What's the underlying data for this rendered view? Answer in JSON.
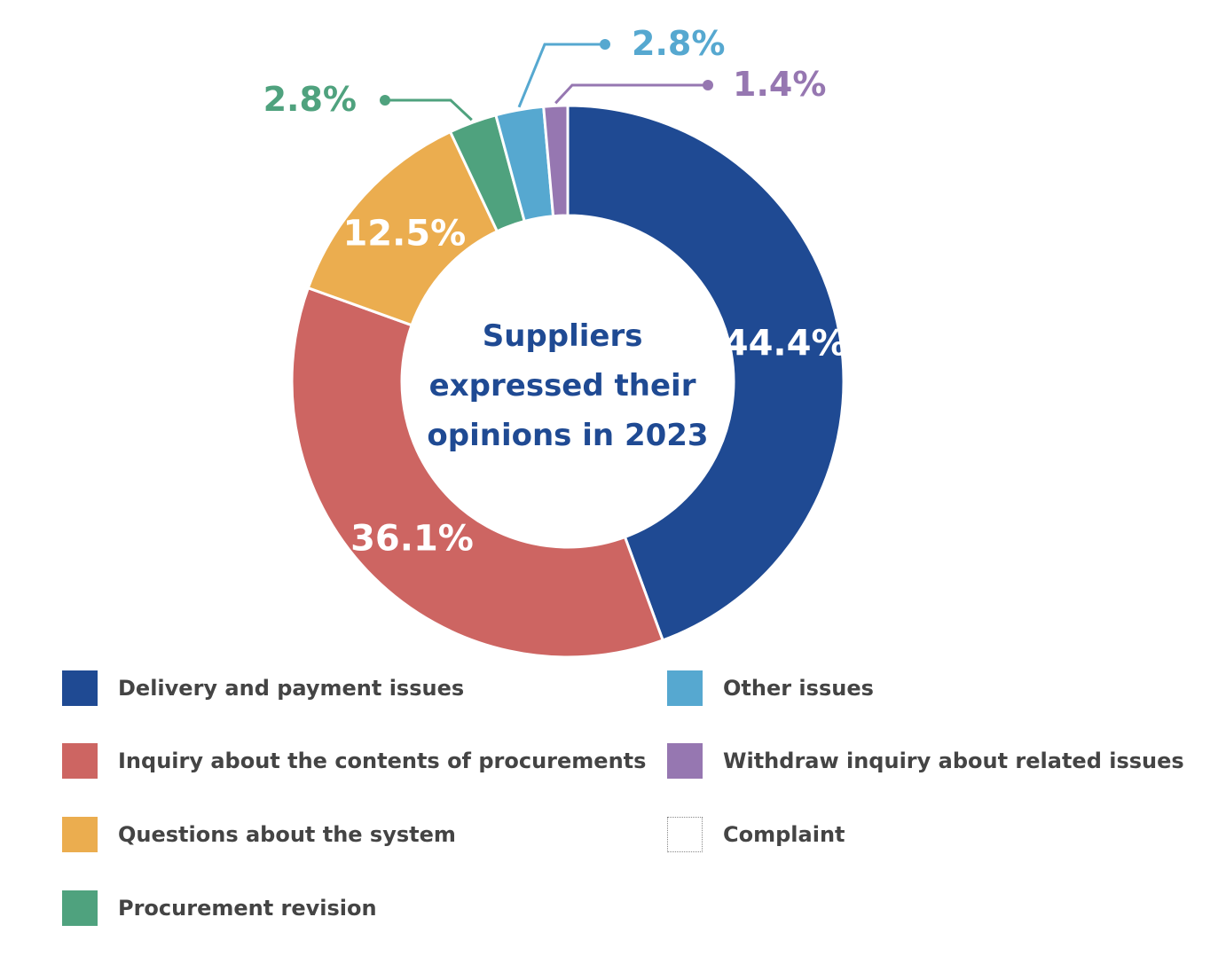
{
  "chart_data": {
    "type": "pie",
    "center_text": [
      "Suppliers",
      "expressed their",
      "opinions in 2023"
    ],
    "slices": [
      {
        "name": "Delivery and payment issues",
        "value": 44.4,
        "label": "44.4%",
        "color": "#1f4a93"
      },
      {
        "name": "Inquiry about the contents of procurements",
        "value": 36.1,
        "label": "36.1%",
        "color": "#cd6562"
      },
      {
        "name": "Questions about the system",
        "value": 12.5,
        "label": "12.5%",
        "color": "#ebad4f"
      },
      {
        "name": "Procurement revision",
        "value": 2.8,
        "label": "2.8%",
        "color": "#4fa27e"
      },
      {
        "name": "Other issues",
        "value": 2.8,
        "label": "2.8%",
        "color": "#56a8d0"
      },
      {
        "name": "Withdraw inquiry about related issues",
        "value": 1.4,
        "label": "1.4%",
        "color": "#9677b1"
      },
      {
        "name": "Complaint",
        "value": 0,
        "label": "",
        "color": "#ffffff"
      }
    ],
    "legend_placement": "bottom"
  }
}
